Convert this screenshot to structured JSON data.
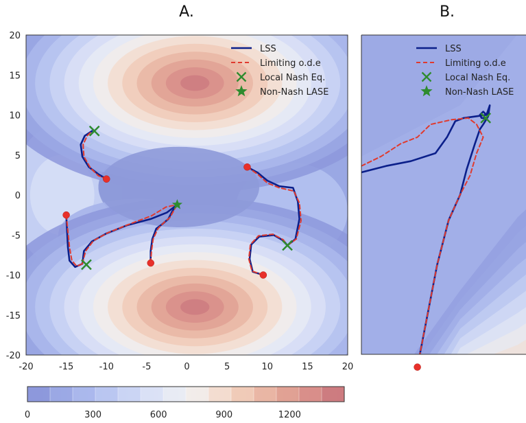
{
  "panel_titles": {
    "a": "A.",
    "b": "B."
  },
  "legend": {
    "lss": "LSS",
    "ode": "Limiting o.d.e",
    "nash": "Local Nash Eq.",
    "lase": "Non-Nash LASE"
  },
  "colors": {
    "lss": "#0b1f8a",
    "ode": "#e03a2e",
    "marker_green": "#2e8b2e",
    "start_red": "#e8302a"
  },
  "chart_data": [
    {
      "type": "contour",
      "panel": "A.",
      "xlim": [
        -20,
        20
      ],
      "ylim": [
        -20,
        20
      ],
      "x_ticks": [
        "-20",
        "-15",
        "-10",
        "-5",
        "0",
        "5",
        "10",
        "15",
        "20"
      ],
      "y_ticks": [
        "20",
        "15",
        "10",
        "5",
        "0",
        "-5",
        "-10",
        "-15",
        "-20"
      ],
      "colorbar": {
        "min": 0,
        "max": 1450,
        "ticks": [
          "0",
          "300",
          "600",
          "900",
          "1200"
        ],
        "colormap": "coolwarm"
      },
      "peaks": [
        {
          "x": 1,
          "y": 14,
          "value": 1450
        },
        {
          "x": 1,
          "y": -14,
          "value": 1450
        }
      ],
      "series": [
        {
          "name": "LSS",
          "style": "solid",
          "trajectories": [
            [
              [
                -10,
                2
              ],
              [
                -11,
                2.6
              ],
              [
                -12.2,
                3.5
              ],
              [
                -13,
                4.8
              ],
              [
                -13.2,
                6.3
              ],
              [
                -12.7,
                7.4
              ],
              [
                -11.8,
                8
              ]
            ],
            [
              [
                -15,
                -2.5
              ],
              [
                -14.9,
                -4.5
              ],
              [
                -14.8,
                -6.5
              ],
              [
                -14.6,
                -8.2
              ],
              [
                -13.9,
                -9
              ],
              [
                -13,
                -8.6
              ]
            ],
            [
              [
                -4.5,
                -8.5
              ],
              [
                -4.5,
                -7
              ],
              [
                -4.3,
                -5.5
              ],
              [
                -3.8,
                -4.2
              ],
              [
                -3,
                -3.6
              ],
              [
                -2.3,
                -3
              ],
              [
                -1.8,
                -2
              ],
              [
                -1.2,
                -1.2
              ]
            ],
            [
              [
                -13,
                -8.6
              ],
              [
                -12.8,
                -7
              ],
              [
                -11.8,
                -5.8
              ],
              [
                -10,
                -4.8
              ],
              [
                -7.5,
                -3.8
              ],
              [
                -4.5,
                -3
              ],
              [
                -2.5,
                -2.2
              ],
              [
                -1.2,
                -1.2
              ]
            ],
            [
              [
                7.5,
                3.5
              ],
              [
                8.8,
                2.8
              ],
              [
                10,
                1.8
              ],
              [
                11.5,
                1.1
              ],
              [
                13.2,
                0.9
              ],
              [
                13.8,
                -0.8
              ],
              [
                14,
                -3
              ],
              [
                13.5,
                -5.5
              ],
              [
                12.5,
                -6.3
              ]
            ],
            [
              [
                9.5,
                -10
              ],
              [
                8.2,
                -9.6
              ],
              [
                7.8,
                -8
              ],
              [
                8,
                -6.2
              ],
              [
                9,
                -5.2
              ],
              [
                10.8,
                -5
              ],
              [
                12,
                -5.7
              ],
              [
                12.5,
                -6.3
              ]
            ]
          ]
        },
        {
          "name": "Limiting o.d.e",
          "style": "dashed",
          "trajectories": [
            [
              [
                -10,
                2
              ],
              [
                -11,
                2.4
              ],
              [
                -12,
                3.4
              ],
              [
                -12.8,
                4.8
              ],
              [
                -12.9,
                6.3
              ],
              [
                -12.4,
                7.4
              ],
              [
                -11.8,
                8
              ]
            ],
            [
              [
                -15,
                -2.5
              ],
              [
                -14.8,
                -4.5
              ],
              [
                -14.6,
                -6.5
              ],
              [
                -14.3,
                -8.2
              ],
              [
                -13.7,
                -8.9
              ],
              [
                -13,
                -8.6
              ]
            ],
            [
              [
                -4.5,
                -8.5
              ],
              [
                -4.4,
                -7
              ],
              [
                -4.2,
                -5.5
              ],
              [
                -3.6,
                -4.2
              ],
              [
                -2.8,
                -3.4
              ],
              [
                -2.1,
                -2.8
              ],
              [
                -1.6,
                -1.9
              ],
              [
                -1.2,
                -1.2
              ]
            ],
            [
              [
                -13,
                -8.6
              ],
              [
                -12.6,
                -7
              ],
              [
                -11.6,
                -5.7
              ],
              [
                -9.8,
                -4.7
              ],
              [
                -7.3,
                -3.7
              ],
              [
                -4.4,
                -2.6
              ],
              [
                -2.6,
                -1.5
              ],
              [
                -1.2,
                -1.2
              ]
            ],
            [
              [
                7.5,
                3.5
              ],
              [
                8.8,
                2.6
              ],
              [
                10,
                1.5
              ],
              [
                11.5,
                0.9
              ],
              [
                13.3,
                0.5
              ],
              [
                14,
                -1
              ],
              [
                14.2,
                -3.2
              ],
              [
                13.6,
                -5.5
              ],
              [
                12.5,
                -6.3
              ]
            ],
            [
              [
                9.5,
                -10
              ],
              [
                8.1,
                -9.5
              ],
              [
                7.7,
                -8
              ],
              [
                7.9,
                -6.2
              ],
              [
                8.9,
                -5.1
              ],
              [
                10.7,
                -4.9
              ],
              [
                12,
                -5.6
              ],
              [
                12.5,
                -6.3
              ]
            ]
          ]
        },
        {
          "name": "Local Nash Eq.",
          "type": "marker",
          "points": [
            [
              -11.5,
              8
            ],
            [
              -12.5,
              -8.7
            ],
            [
              12.5,
              -6.3
            ]
          ]
        },
        {
          "name": "Non-Nash LASE",
          "type": "marker",
          "points": [
            [
              -1.2,
              -1.2
            ]
          ]
        },
        {
          "name": "start points",
          "type": "marker",
          "points": [
            [
              -10,
              2
            ],
            [
              -15,
              -2.5
            ],
            [
              -4.5,
              -8.5
            ],
            [
              7.5,
              3.5
            ],
            [
              9.5,
              -10
            ]
          ]
        }
      ]
    },
    {
      "type": "contour",
      "panel": "B.",
      "xlim": [
        0,
        1
      ],
      "ylim": [
        0,
        1
      ],
      "series": [
        {
          "name": "LSS",
          "style": "solid",
          "trajectories": [
            [
              [
                0,
                0.57
              ],
              [
                0.15,
                0.59
              ],
              [
                0.3,
                0.605
              ],
              [
                0.45,
                0.63
              ],
              [
                0.52,
                0.68
              ],
              [
                0.57,
                0.73
              ],
              [
                0.62,
                0.74
              ],
              [
                0.76,
                0.75
              ],
              [
                0.78,
                0.78
              ],
              [
                0.77,
                0.745
              ],
              [
                0.74,
                0.72
              ],
              [
                0.72,
                0.705
              ],
              [
                0.69,
                0.66
              ],
              [
                0.64,
                0.58
              ],
              [
                0.6,
                0.5
              ],
              [
                0.53,
                0.42
              ],
              [
                0.46,
                0.28
              ],
              [
                0.4,
                0.12
              ],
              [
                0.34,
                -0.04
              ]
            ],
            [
              [
                0.76,
                0.75
              ],
              [
                0.74,
                0.76
              ],
              [
                0.72,
                0.75
              ],
              [
                0.73,
                0.74
              ],
              [
                0.75,
                0.74
              ]
            ]
          ]
        },
        {
          "name": "Limiting o.d.e",
          "style": "dashed",
          "trajectories": [
            [
              [
                0,
                0.59
              ],
              [
                0.12,
                0.62
              ],
              [
                0.24,
                0.66
              ],
              [
                0.34,
                0.68
              ],
              [
                0.42,
                0.72
              ],
              [
                0.55,
                0.735
              ],
              [
                0.65,
                0.74
              ],
              [
                0.7,
                0.72
              ],
              [
                0.72,
                0.7
              ],
              [
                0.74,
                0.68
              ],
              [
                0.7,
                0.63
              ],
              [
                0.66,
                0.56
              ],
              [
                0.6,
                0.5
              ],
              [
                0.53,
                0.42
              ],
              [
                0.46,
                0.28
              ],
              [
                0.4,
                0.12
              ],
              [
                0.34,
                -0.04
              ]
            ]
          ]
        },
        {
          "name": "Local Nash Eq.",
          "type": "marker",
          "points": [
            [
              0.755,
              0.74
            ]
          ]
        },
        {
          "name": "start points",
          "type": "marker",
          "points": [
            [
              0.34,
              -0.04
            ]
          ]
        }
      ]
    }
  ]
}
